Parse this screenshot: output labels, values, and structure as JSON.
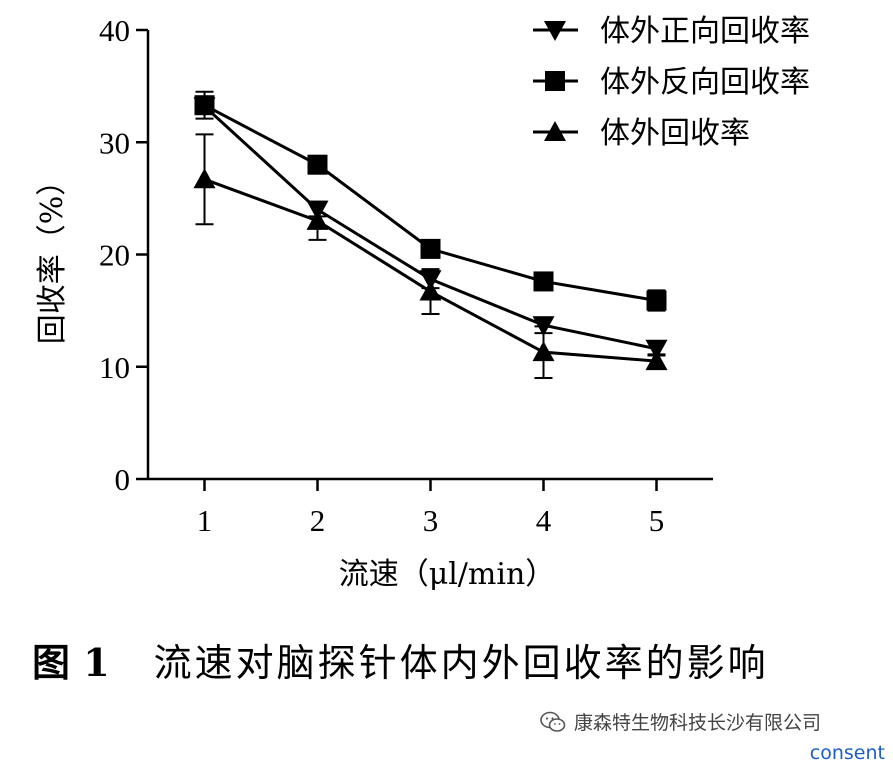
{
  "chart_data": {
    "type": "line",
    "title": "",
    "xlabel": "流速（μl/min）",
    "ylabel": "回收率（%）",
    "x": [
      1,
      2,
      3,
      4,
      5
    ],
    "x_tick_labels": [
      "1",
      "2",
      "3",
      "4",
      "5"
    ],
    "y_tick_labels": [
      "0",
      "10",
      "20",
      "30",
      "40"
    ],
    "xlim": [
      0.5,
      5.5
    ],
    "ylim": [
      0,
      40
    ],
    "grid": false,
    "legend_position": "top-right",
    "series": [
      {
        "name": "体外正向回收率",
        "marker": "triangle-down",
        "values": [
          33.2,
          24.0,
          17.8,
          13.7,
          11.6
        ],
        "errors": [
          0.5,
          0.6,
          0.8,
          0.7,
          0.6
        ]
      },
      {
        "name": "体外反向回收率",
        "marker": "square",
        "values": [
          33.3,
          28.0,
          20.5,
          17.6,
          15.9
        ],
        "errors": [
          1.2,
          0.5,
          0.5,
          0.5,
          0.9
        ]
      },
      {
        "name": "体外回收率",
        "marker": "triangle-up",
        "values": [
          26.7,
          23.0,
          16.7,
          11.3,
          10.5
        ],
        "errors": [
          4.0,
          1.7,
          2.0,
          2.3,
          0.6
        ]
      }
    ]
  },
  "caption": {
    "figure_number": "图 1",
    "title": "流速对脑探针体内外回收率的影响"
  },
  "watermark": {
    "icon": "wechat-icon",
    "text": "康森特生物科技长沙有限公司"
  },
  "consent_link": "consent"
}
